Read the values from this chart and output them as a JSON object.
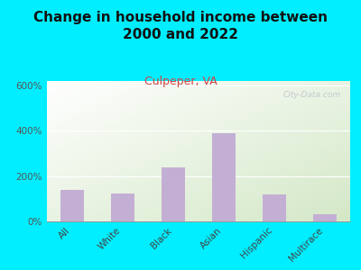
{
  "title": "Change in household income between\n2000 and 2022",
  "subtitle": "Culpeper, VA",
  "categories": [
    "All",
    "White",
    "Black",
    "Asian",
    "Hispanic",
    "Multirace"
  ],
  "values": [
    140,
    125,
    240,
    390,
    120,
    30
  ],
  "bar_color": "#c4afd4",
  "title_fontsize": 11,
  "subtitle_fontsize": 9,
  "subtitle_color": "#cc4444",
  "background_outer": "#00eeff",
  "ylim": [
    0,
    620
  ],
  "yticks": [
    0,
    200,
    400,
    600
  ],
  "ytick_labels": [
    "0%",
    "200%",
    "400%",
    "600%"
  ],
  "watermark": "City-Data.com",
  "watermark_color": "#c0c0cc",
  "chart_bg_color": "#eef4e8"
}
